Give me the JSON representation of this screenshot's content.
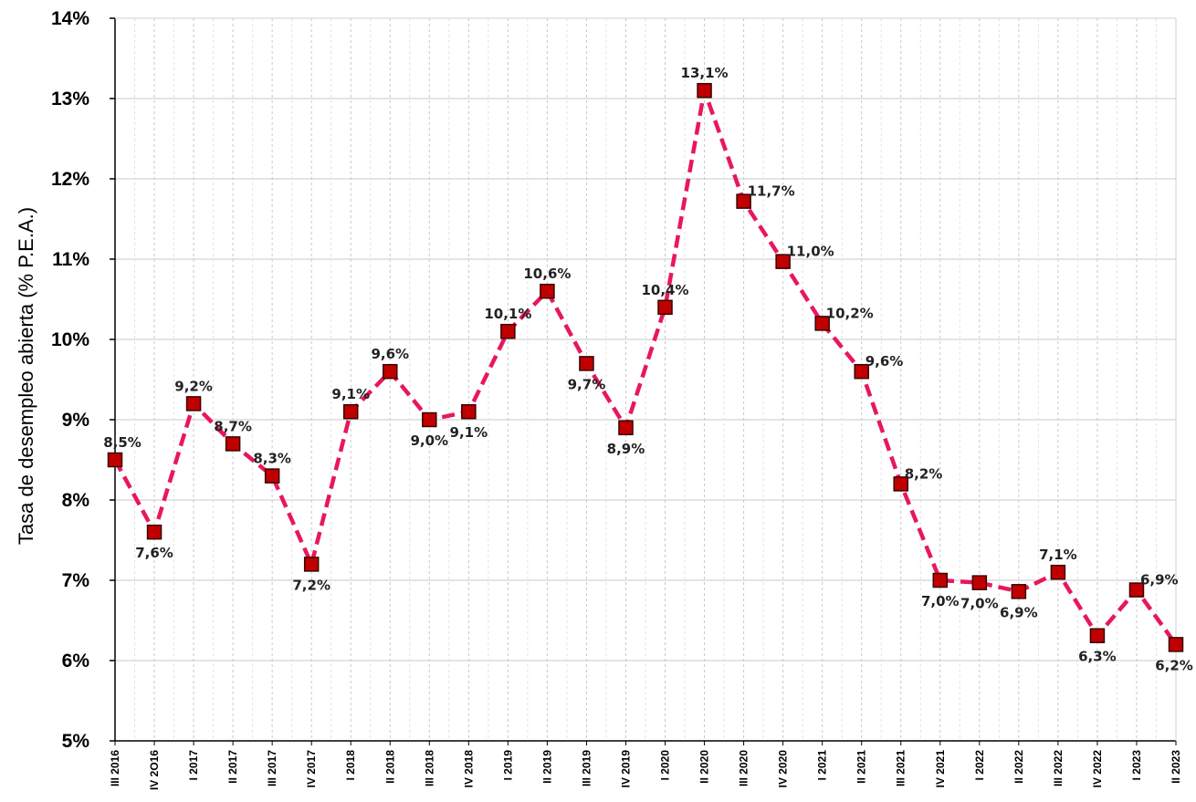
{
  "chart_data": {
    "type": "line",
    "title": "",
    "xlabel": "",
    "ylabel": "Tasa de desempleo abierta (% P.E.A.)",
    "ylim": [
      5,
      14
    ],
    "yticks": [
      "5%",
      "6%",
      "7%",
      "8%",
      "9%",
      "10%",
      "11%",
      "12%",
      "13%",
      "14%"
    ],
    "grid": true,
    "legend": "none",
    "categories": [
      "III 2016",
      "IV 2O16",
      "I 2017",
      "II 2017",
      "III 2017",
      "IV 2017",
      "I 2018",
      "II 2018",
      "III 2018",
      "IV 2018",
      "I 2019",
      "II 2019",
      "III 2019",
      "IV 2019",
      "I 2020",
      "II 2020",
      "III 2020",
      "IV 2020",
      "I 2021",
      "II 2021",
      "III 2021",
      "IV 2021",
      "I 2022",
      "II 2022",
      "III 2022",
      "IV 2022",
      "I 2023",
      "II 2023"
    ],
    "series": [
      {
        "values": [
          8.5,
          7.6,
          9.2,
          8.7,
          8.3,
          7.2,
          9.1,
          9.6,
          9.0,
          9.1,
          10.1,
          10.6,
          9.7,
          8.9,
          10.4,
          13.1,
          11.72,
          10.97,
          10.2,
          9.6,
          8.2,
          7.0,
          6.97,
          6.86,
          7.1,
          6.31,
          6.88,
          6.2
        ],
        "data_labels": [
          "8,5%",
          "7,6%",
          "9,2%",
          "8,7%",
          "8,3%",
          "7,2%",
          "9,1%",
          "9,6%",
          "9,0%",
          "9,1%",
          "10,1%",
          "10,6%",
          "9,7%",
          "8,9%",
          "10,4%",
          "13,1%",
          "11,7%",
          "11,0%",
          "10,2%",
          "9,6%",
          "8,2%",
          "7,0%",
          "7,0%",
          "6,9%",
          "7,1%",
          "6,3%",
          "6,9%",
          "6,2%"
        ],
        "label_positions": [
          "above",
          "below",
          "above",
          "above",
          "above",
          "below",
          "above",
          "above",
          "below",
          "below",
          "above",
          "above",
          "below",
          "below",
          "above",
          "above",
          "right",
          "right",
          "right",
          "right",
          "right",
          "below",
          "below",
          "below",
          "above",
          "below",
          "right",
          "below"
        ]
      }
    ],
    "colors": {
      "line": "#e8175d",
      "marker_fill": "#c00000",
      "marker_edge": "#3a0000",
      "grid": "#c8c8c8",
      "axis": "#000000"
    }
  }
}
